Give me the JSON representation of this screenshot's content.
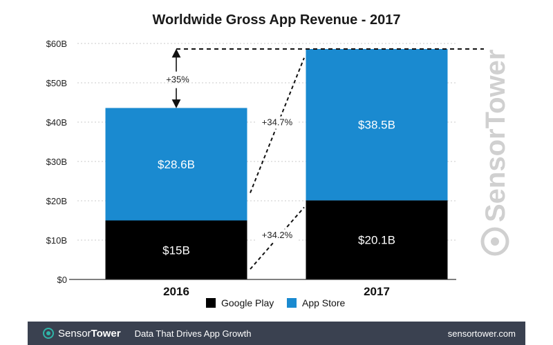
{
  "chart_data": {
    "type": "bar",
    "stacked": true,
    "title": "Worldwide Gross App Revenue - 2017",
    "categories": [
      "2016",
      "2017"
    ],
    "series": [
      {
        "name": "Google Play",
        "color": "#000000",
        "values": [
          15,
          20.1
        ],
        "labels": [
          "$15B",
          "$20.1B"
        ]
      },
      {
        "name": "App Store",
        "color": "#1a8ad0",
        "values": [
          28.6,
          38.5
        ],
        "labels": [
          "$28.6B",
          "$38.5B"
        ]
      }
    ],
    "ylim": [
      0,
      60
    ],
    "yticks": [
      0,
      10,
      20,
      30,
      40,
      50,
      60
    ],
    "ytick_labels": [
      "$0",
      "$10B",
      "$20B",
      "$30B",
      "$40B",
      "$50B",
      "$60B"
    ],
    "grid": true,
    "legend_position": "bottom",
    "annotations": {
      "total_growth": "+35%",
      "app_store_growth": "+34.7%",
      "google_play_growth": "+34.2%"
    }
  },
  "watermark": {
    "part1": "Sensor",
    "part2": "Tower"
  },
  "footer": {
    "brand_part1": "Sensor",
    "brand_part2": "Tower",
    "tagline": "Data That Drives App Growth",
    "site": "sensortower.com"
  },
  "colors": {
    "google_play": "#000000",
    "app_store": "#1a8ad0",
    "footer_bg": "#3a4150",
    "logo_accent": "#2fb5a8"
  }
}
